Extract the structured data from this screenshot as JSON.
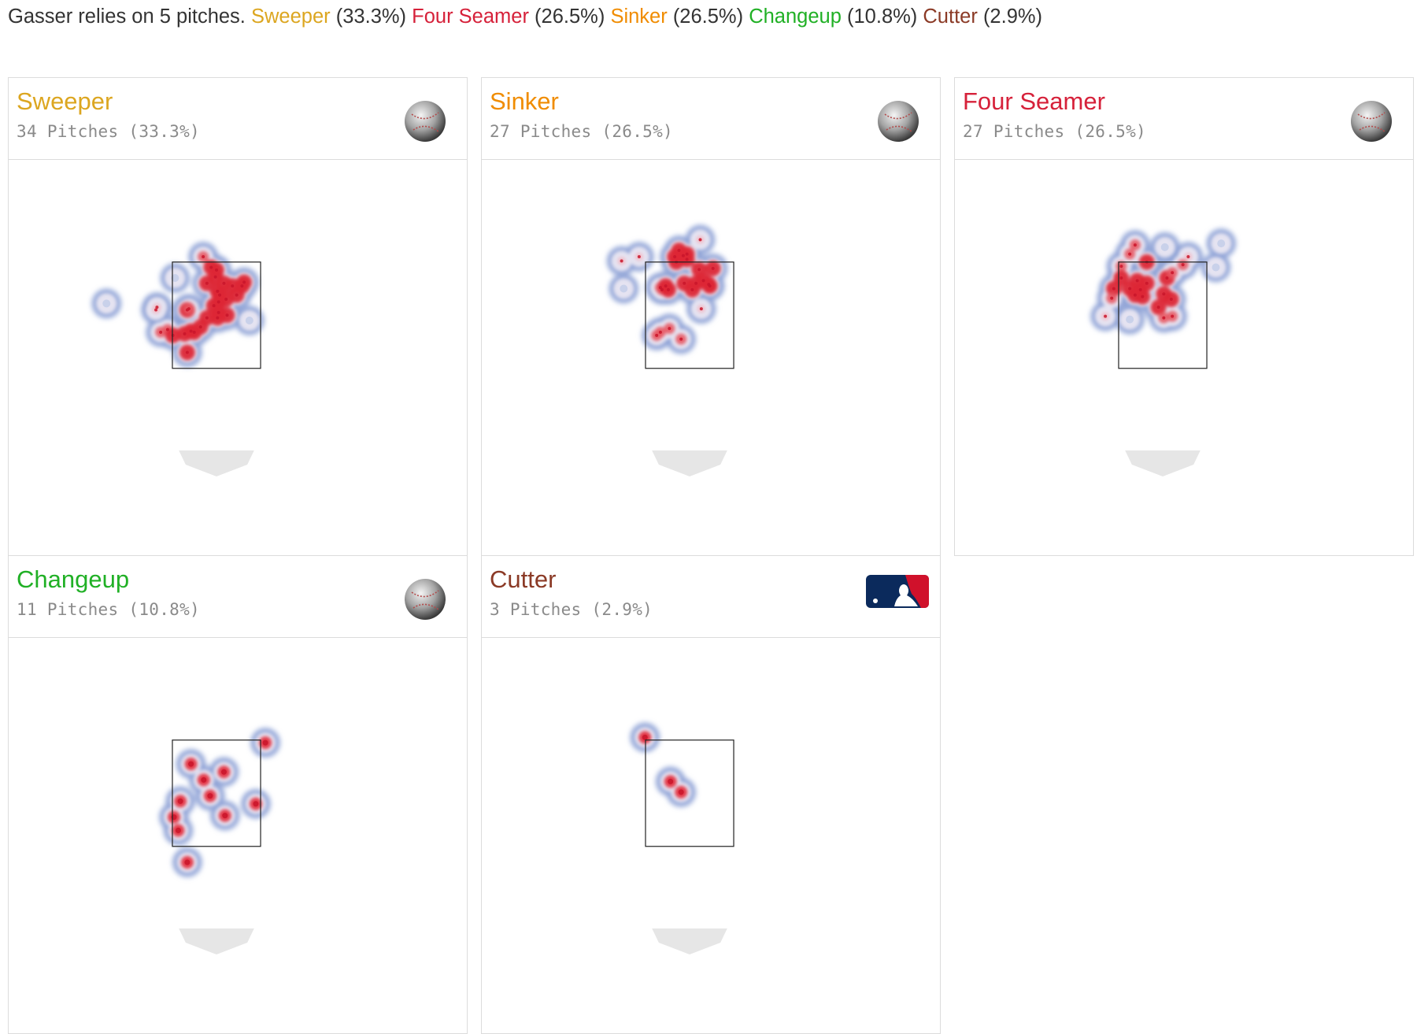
{
  "summary": {
    "prefix": "Gasser relies on 5 pitches.",
    "items": [
      {
        "name": "Sweeper",
        "pct": "(33.3%)",
        "color": "#dca620"
      },
      {
        "name": "Four Seamer",
        "pct": "(26.5%)",
        "color": "#d6213a"
      },
      {
        "name": "Sinker",
        "pct": "(26.5%)",
        "color": "#f08c00"
      },
      {
        "name": "Changeup",
        "pct": "(10.8%)",
        "color": "#20b025"
      },
      {
        "name": "Cutter",
        "pct": "(2.9%)",
        "color": "#8b3a26"
      }
    ]
  },
  "panels": [
    {
      "name": "Sweeper",
      "subtitle": "34 Pitches (33.3%)",
      "color": "#dca620",
      "icon": "baseball-icon"
    },
    {
      "name": "Sinker",
      "subtitle": "27 Pitches (26.5%)",
      "color": "#f08c00",
      "icon": "baseball-icon"
    },
    {
      "name": "Four Seamer",
      "subtitle": "27 Pitches (26.5%)",
      "color": "#d6213a",
      "icon": "baseball-icon"
    },
    {
      "name": "Changeup",
      "subtitle": "11 Pitches (10.8%)",
      "color": "#20b025",
      "icon": "baseball-icon"
    },
    {
      "name": "Cutter",
      "subtitle": "3 Pitches (2.9%)",
      "color": "#8b3a26",
      "icon": "mlb-logo-icon"
    }
  ],
  "chart_data": [
    {
      "type": "heatmap",
      "title": "Sweeper",
      "subtitle": "34 Pitches (33.3%)",
      "points": [
        [
          -2.07,
          2.72
        ],
        [
          -1.12,
          2.65
        ],
        [
          -1.14,
          2.6
        ],
        [
          -0.55,
          2.6
        ],
        [
          -0.52,
          2.62
        ],
        [
          -0.92,
          2.23
        ],
        [
          -1.05,
          2.18
        ],
        [
          -0.82,
          2.12
        ],
        [
          -0.6,
          2.15
        ],
        [
          -0.42,
          2.18
        ],
        [
          -0.3,
          2.28
        ],
        [
          -0.18,
          2.45
        ],
        [
          -0.78,
          3.2
        ],
        [
          -0.25,
          3.6
        ],
        [
          -0.18,
          3.1
        ],
        [
          -0.02,
          3.22
        ],
        [
          0.02,
          2.95
        ],
        [
          0.04,
          2.75
        ],
        [
          0.04,
          2.55
        ],
        [
          0.02,
          2.45
        ],
        [
          0.06,
          2.88
        ],
        [
          0.14,
          3.1
        ],
        [
          0.18,
          2.8
        ],
        [
          0.3,
          3.05
        ],
        [
          0.48,
          3.05
        ],
        [
          0.52,
          3.12
        ],
        [
          0.38,
          2.88
        ],
        [
          0.62,
          2.4
        ],
        [
          -0.55,
          1.8
        ],
        [
          0.2,
          2.5
        ],
        [
          0.0,
          3.35
        ],
        [
          -0.1,
          3.4
        ],
        [
          -0.48,
          2.2
        ],
        [
          -0.05,
          2.68
        ]
      ]
    },
    {
      "type": "heatmap",
      "title": "Sinker",
      "subtitle": "27 Pitches (26.5%)",
      "points": [
        [
          -1.28,
          3.52
        ],
        [
          -0.95,
          3.6
        ],
        [
          -0.28,
          3.6
        ],
        [
          -0.2,
          3.72
        ],
        [
          -0.12,
          3.62
        ],
        [
          0.2,
          3.92
        ],
        [
          0.18,
          3.36
        ],
        [
          0.44,
          3.38
        ],
        [
          -1.24,
          3.0
        ],
        [
          -0.55,
          3.02
        ],
        [
          -0.52,
          2.98
        ],
        [
          -0.45,
          3.05
        ],
        [
          -0.1,
          3.1
        ],
        [
          0.05,
          2.98
        ],
        [
          0.12,
          3.1
        ],
        [
          0.26,
          3.15
        ],
        [
          0.36,
          3.08
        ],
        [
          0.22,
          2.62
        ],
        [
          -0.55,
          2.18
        ],
        [
          -0.62,
          2.12
        ],
        [
          -0.38,
          2.25
        ],
        [
          -0.16,
          2.05
        ],
        [
          0.38,
          3.05
        ],
        [
          -0.25,
          3.5
        ],
        [
          -0.05,
          3.65
        ],
        [
          -0.4,
          2.98
        ],
        [
          -0.05,
          3.55
        ]
      ]
    },
    {
      "type": "heatmap",
      "title": "Four Seamer",
      "subtitle": "27 Pitches (26.5%)",
      "points": [
        [
          -0.52,
          3.82
        ],
        [
          -0.62,
          3.65
        ],
        [
          -0.78,
          3.42
        ],
        [
          -0.78,
          3.2
        ],
        [
          -0.92,
          3.0
        ],
        [
          -0.96,
          2.82
        ],
        [
          -0.62,
          3.0
        ],
        [
          -0.52,
          2.88
        ],
        [
          -0.42,
          2.98
        ],
        [
          -0.38,
          2.85
        ],
        [
          -0.3,
          3.1
        ],
        [
          -0.08,
          2.65
        ],
        [
          0.02,
          2.45
        ],
        [
          0.18,
          2.48
        ],
        [
          0.16,
          2.8
        ],
        [
          0.08,
          3.2
        ],
        [
          0.38,
          3.45
        ],
        [
          0.48,
          3.6
        ],
        [
          1.1,
          3.85
        ],
        [
          1.0,
          3.4
        ],
        [
          -1.08,
          2.48
        ],
        [
          -0.62,
          2.42
        ],
        [
          0.04,
          3.78
        ],
        [
          -0.3,
          3.5
        ],
        [
          0.18,
          3.3
        ],
        [
          -0.48,
          3.15
        ],
        [
          0.02,
          2.9
        ]
      ]
    },
    {
      "type": "heatmap",
      "title": "Changeup",
      "subtitle": "11 Pitches (10.8%)",
      "points": [
        [
          0.92,
          3.45
        ],
        [
          -0.48,
          3.05
        ],
        [
          -0.24,
          2.75
        ],
        [
          0.14,
          2.9
        ],
        [
          -0.12,
          2.45
        ],
        [
          0.16,
          2.08
        ],
        [
          0.74,
          2.3
        ],
        [
          -0.68,
          2.35
        ],
        [
          -0.8,
          2.05
        ],
        [
          -0.72,
          1.8
        ],
        [
          -0.55,
          1.2
        ]
      ]
    },
    {
      "type": "heatmap",
      "title": "Cutter",
      "subtitle": "3 Pitches (2.9%)",
      "points": [
        [
          -0.84,
          3.55
        ],
        [
          -0.36,
          2.72
        ],
        [
          -0.16,
          2.52
        ]
      ]
    }
  ]
}
